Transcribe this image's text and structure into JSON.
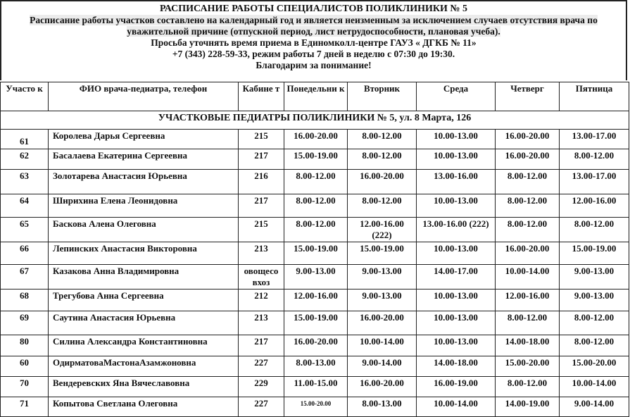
{
  "header": {
    "title": "РАСПИСАНИЕ РАБОТЫ СПЕЦИАЛИСТОВ ПОЛИКЛИНИКИ № 5",
    "line1": "Расписание работы участков составлено на календарный год и является неизменным за исключением случаев отсутствия врача по",
    "line2": "уважительной причине (отпускной период, лист нетрудоспособности, плановая учеба).",
    "line3": "Просьба уточнять время приема в Единомколл-центре ГАУЗ « ДГКБ № 11»",
    "line4": "+7 (343) 228-59-33, режим работы  7 дней в неделю с 07:30 до 19:30.",
    "line5": "Благодарим за понимание!"
  },
  "columns": [
    "Участо к",
    "ФИО врача-педиатра, телефон",
    "Кабине т",
    "Понедельни к",
    "Вторник",
    "Среда",
    "Четверг",
    "Пятница"
  ],
  "section": "УЧАСТКОВЫЕ ПЕДИАТРЫ ПОЛИКЛИНИКИ № 5, ул. 8 Марта, 126",
  "rows": [
    [
      "61",
      "Королева Дарья Сергеевна",
      "215",
      "16.00-20.00",
      "8.00-12.00",
      "10.00-13.00",
      "16.00-20.00",
      "13.00-17.00"
    ],
    [
      "62",
      "Басалаева Екатерина Сергеевна",
      "217",
      "15.00-19.00",
      "8.00-12.00",
      "10.00-13.00",
      "16.00-20.00",
      "8.00-12.00"
    ],
    [
      "63",
      "Золотарева Анастасия Юрьевна",
      "216",
      "8.00-12.00",
      "16.00-20.00",
      "13.00-16.00",
      "8.00-12.00",
      "13.00-17.00"
    ],
    [
      "64",
      "Ширихина Елена Леонидовна",
      "217",
      "8.00-12.00",
      "8.00-12.00",
      "10.00-13.00",
      "8.00-12.00",
      "12.00-16.00"
    ],
    [
      "65",
      "Баскова Алена Олеговна",
      "215",
      "8.00-12.00",
      "12.00-16.00 (222)",
      "13.00-16.00 (222)",
      "8.00-12.00",
      "8.00-12.00"
    ],
    [
      "66",
      "Лепинских Анастасия Викторовна",
      "213",
      "15.00-19.00",
      "15.00-19.00",
      "10.00-13.00",
      "16.00-20.00",
      "15.00-19.00"
    ],
    [
      "67",
      "Казакова Анна Владимировна",
      "овощесо вхоз",
      "9.00-13.00",
      "9.00-13.00",
      "14.00-17.00",
      "10.00-14.00",
      "9.00-13.00"
    ],
    [
      "68",
      "Трегубова Анна Сергеевна",
      "212",
      "12.00-16.00",
      "9.00-13.00",
      "10.00-13.00",
      "12.00-16.00",
      "9.00-13.00"
    ],
    [
      "69",
      "Саутина Анастасия Юрьевна",
      "213",
      "15.00-19.00",
      "16.00-20.00",
      "10.00-13.00",
      "8.00-12.00",
      "8.00-12.00"
    ],
    [
      "80",
      "Силина Александра Константиновна",
      "217",
      "16.00-20.00",
      "10.00-14.00",
      "10.00-13.00",
      "14.00-18.00",
      "8.00-12.00"
    ],
    [
      "60",
      "ОдирматоваМастонаАзамжоновна",
      "227",
      "8.00-13.00",
      "9.00-14.00",
      "14.00-18.00",
      "15.00-20.00",
      "15.00-20.00"
    ],
    [
      "70",
      "Вендеревских Яна Вячеславовна",
      "229",
      "11.00-15.00",
      "16.00-20.00",
      "16.00-19.00",
      "8.00-12.00",
      "10.00-14.00"
    ],
    [
      "71",
      "Копытова Светлана Олеговна",
      "227",
      "15.00-20.00",
      "8.00-13.00",
      "10.00-14.00",
      "14.00-19.00",
      "9.00-14.00"
    ]
  ]
}
